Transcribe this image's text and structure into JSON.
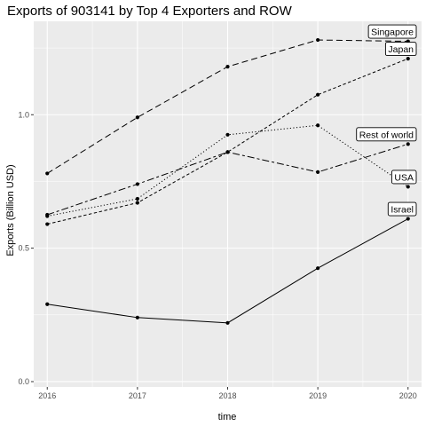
{
  "chart_data": {
    "type": "line",
    "title": "Exports of 903141 by Top 4 Exporters and ROW",
    "xlabel": "time",
    "ylabel": "Exports (Billion USD)",
    "x": [
      2016,
      2017,
      2018,
      2019,
      2020
    ],
    "x_tick_labels": [
      "2016",
      "2017",
      "2018",
      "2019",
      "2020"
    ],
    "xlim": [
      2015.85,
      2020.15
    ],
    "ylim": [
      -0.02,
      1.35
    ],
    "y_ticks": [
      0.0,
      0.5,
      1.0
    ],
    "y_tick_labels": [
      "0.0",
      "0.5",
      "1.0"
    ],
    "grid": true,
    "background": "#ebebeb",
    "series": [
      {
        "name": "Singapore",
        "label": "Singapore",
        "dash": "longdash",
        "values": [
          0.78,
          0.99,
          1.18,
          1.28,
          1.275
        ]
      },
      {
        "name": "Japan",
        "label": "Japan",
        "dash": "shortdash",
        "values": [
          0.59,
          0.67,
          0.86,
          1.075,
          1.21
        ]
      },
      {
        "name": "Rest of world",
        "label": "Rest of world",
        "dash": "twodash",
        "values": [
          0.625,
          0.74,
          0.86,
          0.785,
          0.89
        ]
      },
      {
        "name": "USA",
        "label": "USA",
        "dash": "dotted",
        "values": [
          0.62,
          0.685,
          0.925,
          0.96,
          0.73
        ]
      },
      {
        "name": "Israel",
        "label": "Israel",
        "dash": "solid",
        "values": [
          0.29,
          0.24,
          0.22,
          0.425,
          0.61
        ]
      }
    ]
  }
}
